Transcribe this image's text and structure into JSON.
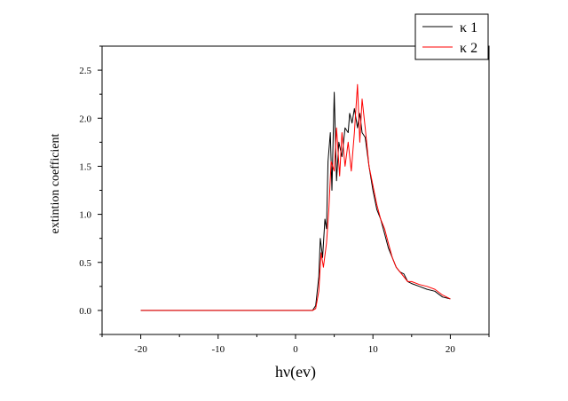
{
  "chart_data": {
    "type": "line",
    "title": "",
    "xlabel": "hν(ev)",
    "ylabel": "extintion coefficient",
    "xlim": [
      -25,
      25
    ],
    "ylim": [
      -0.25,
      2.75
    ],
    "x_ticks": [
      -20,
      -10,
      0,
      10,
      20
    ],
    "x_tick_labels": [
      "-20",
      "-10",
      "0",
      "10",
      "20"
    ],
    "y_ticks": [
      0.0,
      0.5,
      1.0,
      1.5,
      2.0,
      2.5
    ],
    "y_tick_labels": [
      "0.0",
      "0.5",
      "1.0",
      "1.5",
      "2.0",
      "2.5"
    ],
    "grid": false,
    "legend_position": "top-right",
    "series": [
      {
        "name": "κ 1",
        "color": "#000000",
        "x": [
          -20,
          2.2,
          2.6,
          3.0,
          3.2,
          3.5,
          3.8,
          4.0,
          4.2,
          4.5,
          4.7,
          5.0,
          5.3,
          5.6,
          6.0,
          6.4,
          6.8,
          7.0,
          7.3,
          7.6,
          8.0,
          8.3,
          8.6,
          9.0,
          9.5,
          10.0,
          10.5,
          11.0,
          11.5,
          12.0,
          12.5,
          13.0,
          13.5,
          14.0,
          14.5,
          15.0,
          16.0,
          17.0,
          18.0,
          19.0,
          20.0
        ],
        "y": [
          0.0,
          0.0,
          0.05,
          0.35,
          0.75,
          0.55,
          0.95,
          0.85,
          1.55,
          1.85,
          1.25,
          2.27,
          1.35,
          1.75,
          1.6,
          1.9,
          1.85,
          2.05,
          1.95,
          2.1,
          1.9,
          2.05,
          1.85,
          1.8,
          1.5,
          1.25,
          1.05,
          0.95,
          0.8,
          0.65,
          0.55,
          0.45,
          0.4,
          0.38,
          0.3,
          0.28,
          0.25,
          0.22,
          0.2,
          0.14,
          0.12
        ]
      },
      {
        "name": "κ 2",
        "color": "#ff0000",
        "x": [
          -20,
          2.2,
          2.6,
          3.0,
          3.3,
          3.6,
          4.0,
          4.3,
          4.6,
          5.0,
          5.3,
          5.7,
          6.0,
          6.4,
          6.8,
          7.2,
          7.6,
          8.0,
          8.3,
          8.6,
          9.0,
          9.5,
          10.0,
          10.5,
          11.0,
          11.5,
          12.0,
          12.5,
          13.0,
          13.5,
          14.0,
          14.5,
          15.0,
          16.0,
          17.0,
          18.0,
          19.0,
          20.0
        ],
        "y": [
          0.0,
          0.0,
          0.02,
          0.2,
          0.6,
          0.45,
          0.7,
          1.05,
          1.55,
          1.45,
          1.9,
          1.4,
          1.85,
          1.5,
          1.75,
          1.45,
          1.85,
          2.35,
          1.75,
          2.2,
          1.9,
          1.5,
          1.3,
          1.1,
          0.95,
          0.85,
          0.7,
          0.55,
          0.45,
          0.4,
          0.35,
          0.3,
          0.3,
          0.27,
          0.25,
          0.22,
          0.16,
          0.12
        ]
      }
    ]
  }
}
